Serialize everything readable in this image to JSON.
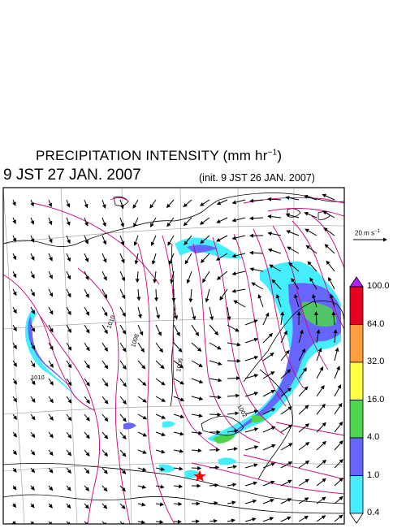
{
  "title": {
    "main": "PRECIPITATION INTENSITY (mm hr",
    "exponent": "−1",
    "close": ")"
  },
  "valid_time": "9 JST 27 JAN. 2007",
  "init_time": "(init. 9 JST 26 JAN. 2007)",
  "wind_reference": {
    "label": "20 m s",
    "exponent": "−1"
  },
  "colorbar": {
    "labels": [
      "100.0",
      "64.0",
      "32.0",
      "16.0",
      "4.0",
      "1.0",
      "0.4"
    ],
    "colors": [
      "#e8001e",
      "#ff9f40",
      "#ffff44",
      "#4dd64d",
      "#6666ff",
      "#44eeff"
    ],
    "over_color": "#b21fff",
    "under_color": "#ffffff"
  },
  "isobar_labels": [
    "1010",
    "1008",
    "1006",
    "1010",
    "1002"
  ],
  "colors": {
    "isobar": "#cc0077",
    "wind_arrow": "#000000",
    "gridline": "#999999",
    "coastline": "#000000",
    "precip_light": "#44eeff",
    "precip_moderate": "#6666ff",
    "precip_heavy": "#4dd64d",
    "marker": "#ff0000"
  },
  "marker": "red-star"
}
